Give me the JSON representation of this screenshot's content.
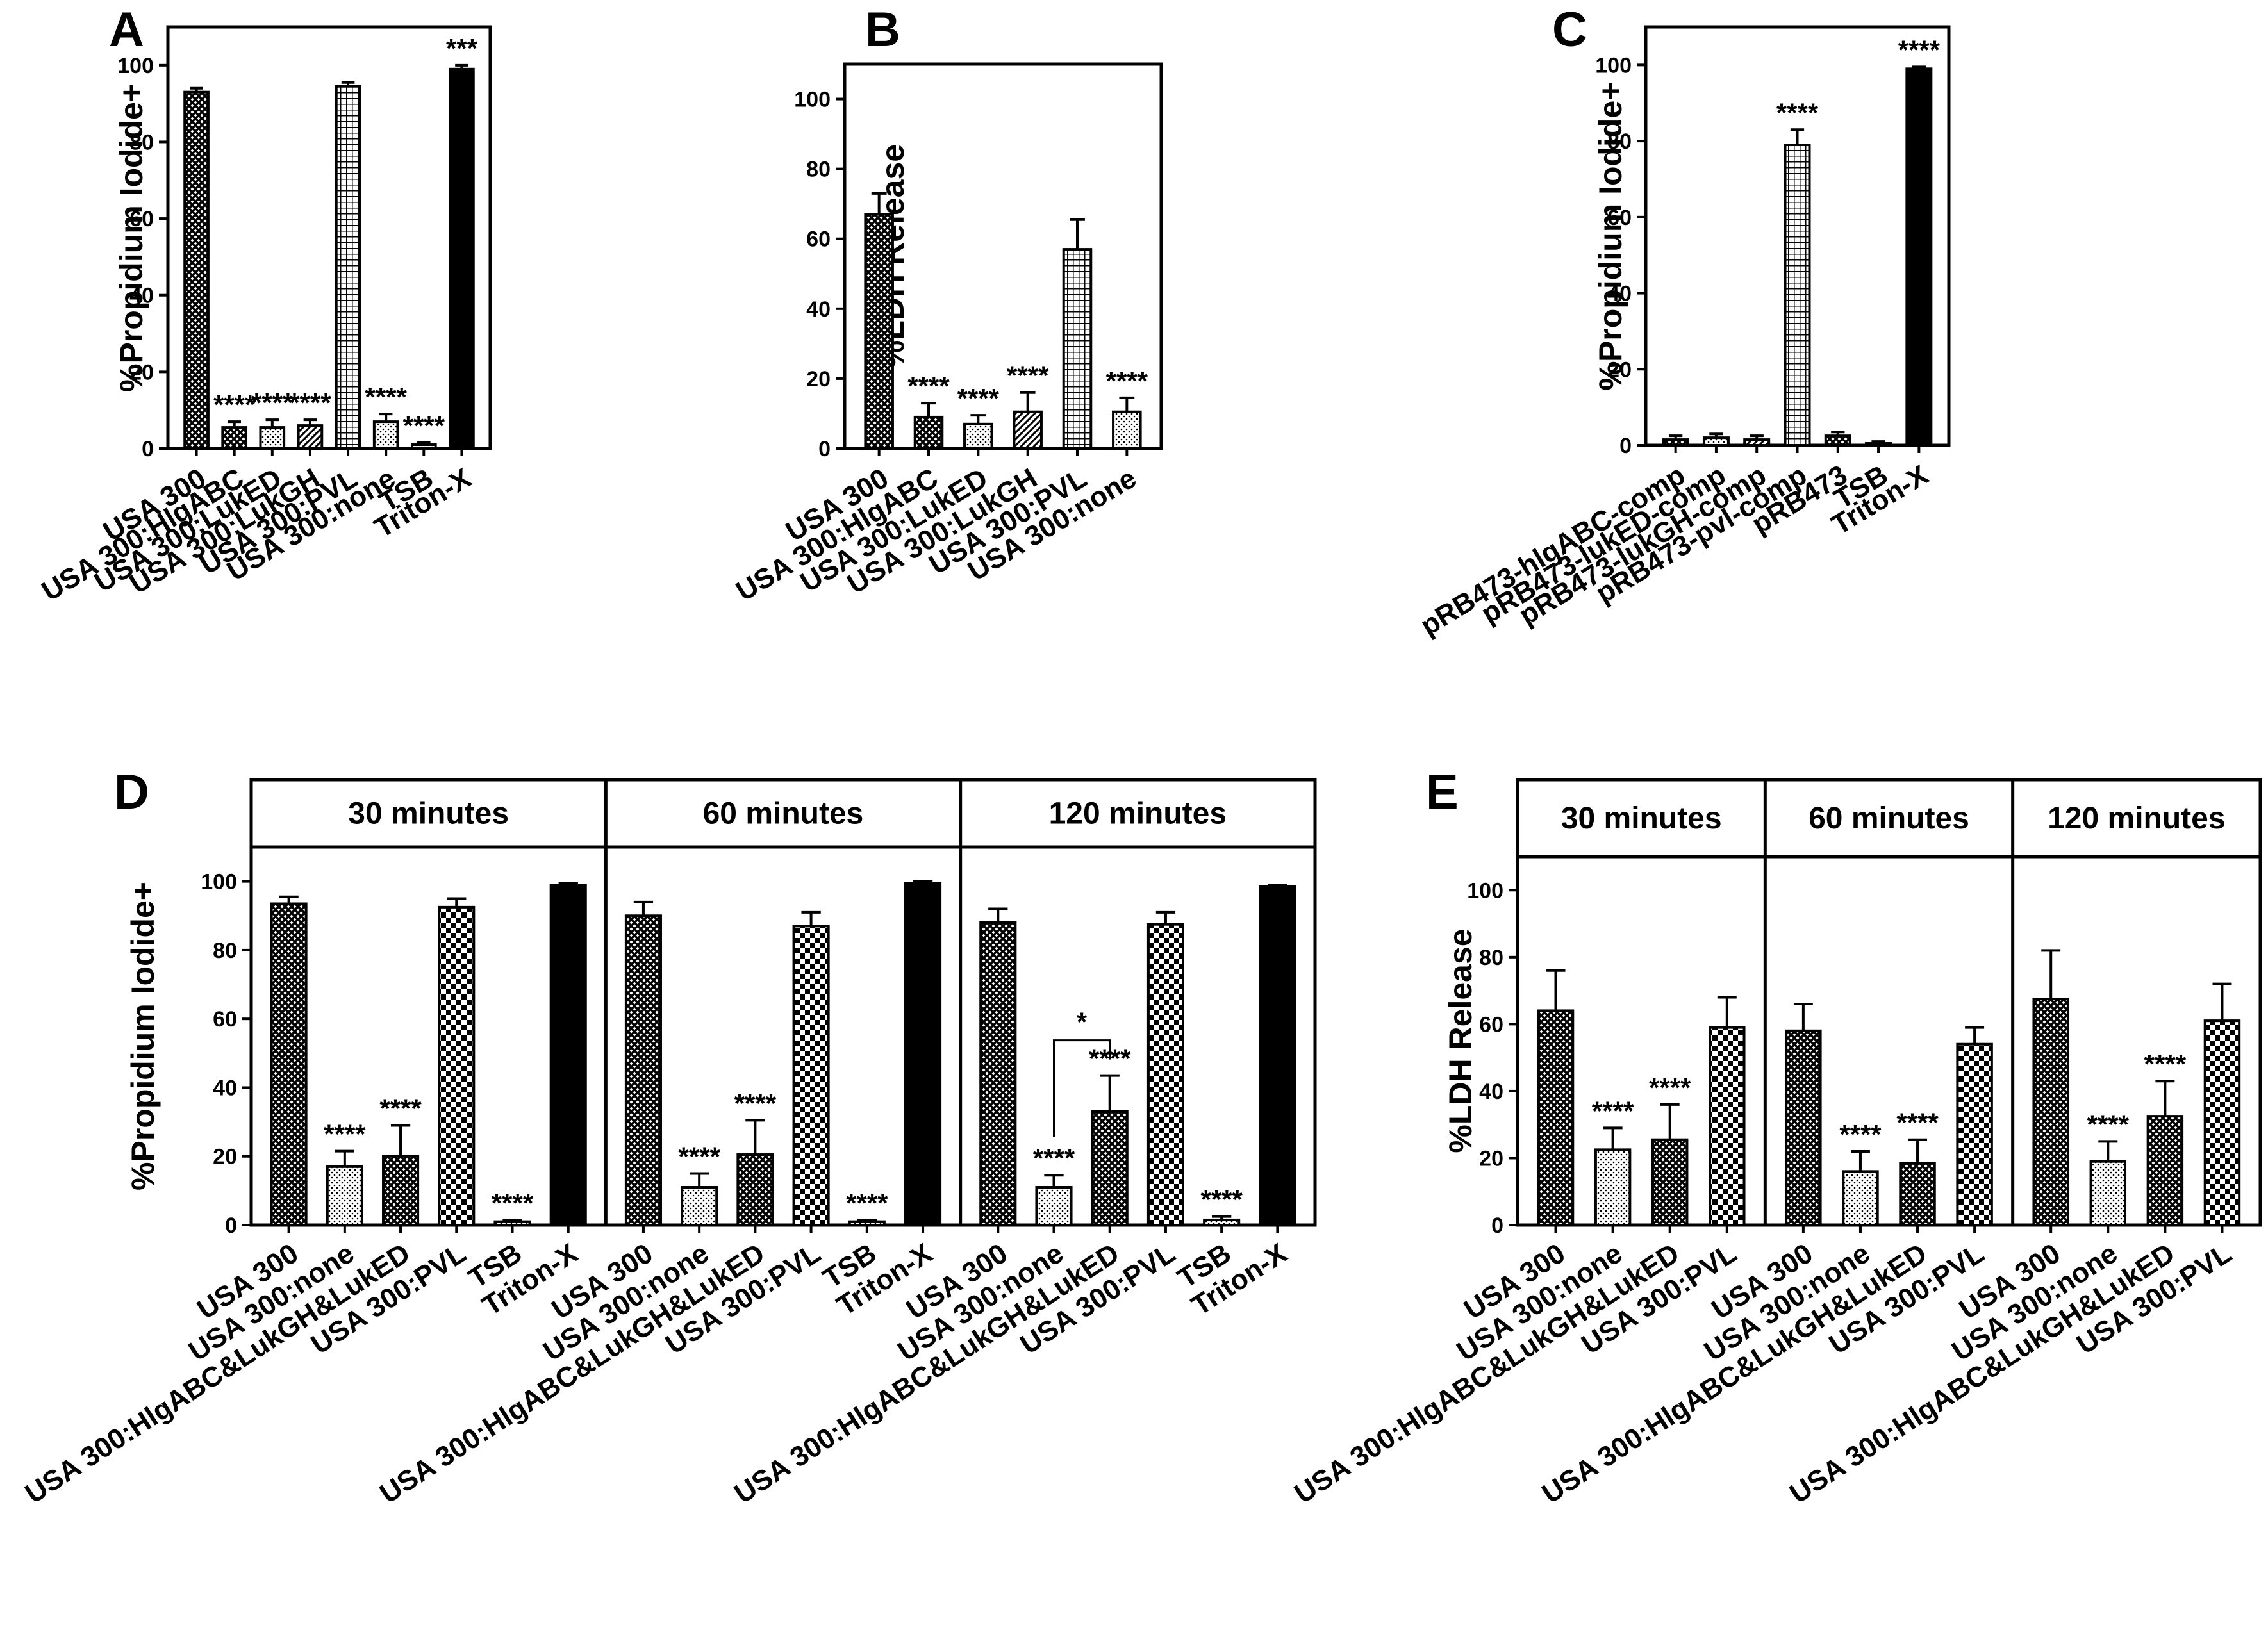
{
  "chart_data": [
    {
      "panel": "A",
      "type": "bar",
      "ylabel": "%Propidium Iodide+",
      "ylim": [
        0,
        110
      ],
      "yticks": [
        0,
        20,
        40,
        60,
        80,
        100
      ],
      "categories": [
        "USA 300",
        "USA 300:HlgABC",
        "USA 300:LukED",
        "USA 300:LukGH",
        "USA 300:PVL",
        "USA 300:none",
        "TSB",
        "Triton-X"
      ],
      "values": [
        93,
        5.5,
        5.5,
        6,
        94.5,
        7,
        1,
        99
      ],
      "errors": [
        1,
        1.5,
        2,
        1.5,
        1,
        2,
        0.5,
        1
      ],
      "significance": [
        "",
        "****",
        "****",
        "****",
        "",
        "****",
        "****",
        "***"
      ],
      "patterns": [
        "crosshatch",
        "crosshatch",
        "dots",
        "diag",
        "grid",
        "dots",
        "dots",
        "solid"
      ]
    },
    {
      "panel": "B",
      "type": "bar",
      "ylabel": "%LDH Release",
      "ylim": [
        0,
        110
      ],
      "yticks": [
        0,
        20,
        40,
        60,
        80,
        100
      ],
      "categories": [
        "USA 300",
        "USA 300:HlgABC",
        "USA 300:LukED",
        "USA 300:LukGH",
        "USA 300:PVL",
        "USA 300:none"
      ],
      "values": [
        67,
        9,
        7,
        10.5,
        57,
        10.5
      ],
      "errors": [
        6,
        4,
        2.5,
        5.5,
        8.5,
        4
      ],
      "significance": [
        "",
        "****",
        "****",
        "****",
        "",
        "****"
      ],
      "patterns": [
        "crosshatch",
        "crosshatch",
        "dots",
        "diag",
        "grid",
        "dots"
      ]
    },
    {
      "panel": "C",
      "type": "bar",
      "ylabel": "%Propidium Iodide+",
      "ylim": [
        0,
        110
      ],
      "yticks": [
        0,
        20,
        40,
        60,
        80,
        100
      ],
      "categories": [
        "pRB473-hlgABC-comp",
        "pRB473-lukED-comp",
        "pRB473-lukGH-comp",
        "pRB473-pvl-comp",
        "pRB473",
        "TSB",
        "Triton-X"
      ],
      "values": [
        1.5,
        2,
        1.5,
        79,
        2.5,
        0.5,
        99
      ],
      "errors": [
        1,
        1,
        1,
        4,
        1,
        0.5,
        0.5
      ],
      "significance": [
        "",
        "",
        "",
        "****",
        "",
        "",
        "****"
      ],
      "patterns": [
        "crosshatch",
        "dots",
        "diag",
        "grid",
        "crosshatch",
        "dots",
        "solid"
      ]
    },
    {
      "panel": "D",
      "type": "bar",
      "ylabel": "%Propidium Iodide+",
      "ylim": [
        0,
        110
      ],
      "yticks": [
        0,
        20,
        40,
        60,
        80,
        100
      ],
      "groups": [
        {
          "title": "30 minutes",
          "categories": [
            "USA 300",
            "USA 300:none",
            "USA 300:HlgABC&LukGH&LukED",
            "USA 300:PVL",
            "TSB",
            "Triton-X"
          ],
          "values": [
            93.5,
            17,
            20,
            92.5,
            1,
            99
          ],
          "errors": [
            2,
            4.5,
            9,
            2.5,
            0.5,
            0.5
          ],
          "significance": [
            "",
            "****",
            "****",
            "",
            "****",
            ""
          ]
        },
        {
          "title": "60 minutes",
          "categories": [
            "USA 300",
            "USA 300:none",
            "USA 300:HlgABC&LukGH&LukED",
            "USA 300:PVL",
            "TSB",
            "Triton-X"
          ],
          "values": [
            90,
            11,
            20.5,
            87,
            1,
            99.5
          ],
          "errors": [
            4,
            4,
            10,
            4,
            0.5,
            0.5
          ],
          "significance": [
            "",
            "****",
            "****",
            "",
            "****",
            ""
          ]
        },
        {
          "title": "120 minutes",
          "categories": [
            "USA 300",
            "USA 300:none",
            "USA 300:HlgABC&LukGH&LukED",
            "USA 300:PVL",
            "TSB",
            "Triton-X"
          ],
          "values": [
            88,
            11,
            33,
            87.5,
            1.5,
            98.5
          ],
          "errors": [
            4,
            3.5,
            10.5,
            3.5,
            1,
            0.5
          ],
          "significance": [
            "",
            "****",
            "****",
            "",
            "****",
            ""
          ],
          "bracket": {
            "from": 1,
            "to": 2,
            "label": "*"
          }
        }
      ],
      "patterns": [
        "crosshatch",
        "dots",
        "crosshatch",
        "checker",
        "dots",
        "solid"
      ]
    },
    {
      "panel": "E",
      "type": "bar",
      "ylabel": "%LDH Release",
      "ylim": [
        0,
        110
      ],
      "yticks": [
        0,
        20,
        40,
        60,
        80,
        100
      ],
      "groups": [
        {
          "title": "30 minutes",
          "categories": [
            "USA 300",
            "USA 300:none",
            "USA 300:HlgABC&LukGH&LukED",
            "USA 300:PVL"
          ],
          "values": [
            64,
            22.5,
            25.5,
            59
          ],
          "errors": [
            12,
            6.5,
            10.5,
            9
          ],
          "significance": [
            "",
            "****",
            "****",
            ""
          ]
        },
        {
          "title": "60 minutes",
          "categories": [
            "USA 300",
            "USA 300:none",
            "USA 300:HlgABC&LukGH&LukED",
            "USA 300:PVL"
          ],
          "values": [
            58,
            16,
            18.5,
            54
          ],
          "errors": [
            8,
            6,
            7,
            5
          ],
          "significance": [
            "",
            "****",
            "****",
            ""
          ]
        },
        {
          "title": "120 minutes",
          "categories": [
            "USA 300",
            "USA 300:none",
            "USA 300:HlgABC&LukGH&LukED",
            "USA 300:PVL"
          ],
          "values": [
            67.5,
            19,
            32.5,
            61
          ],
          "errors": [
            14.5,
            6,
            10.5,
            11
          ],
          "significance": [
            "",
            "****",
            "****",
            ""
          ]
        }
      ],
      "patterns": [
        "crosshatch",
        "dots",
        "crosshatch",
        "checker"
      ]
    }
  ]
}
